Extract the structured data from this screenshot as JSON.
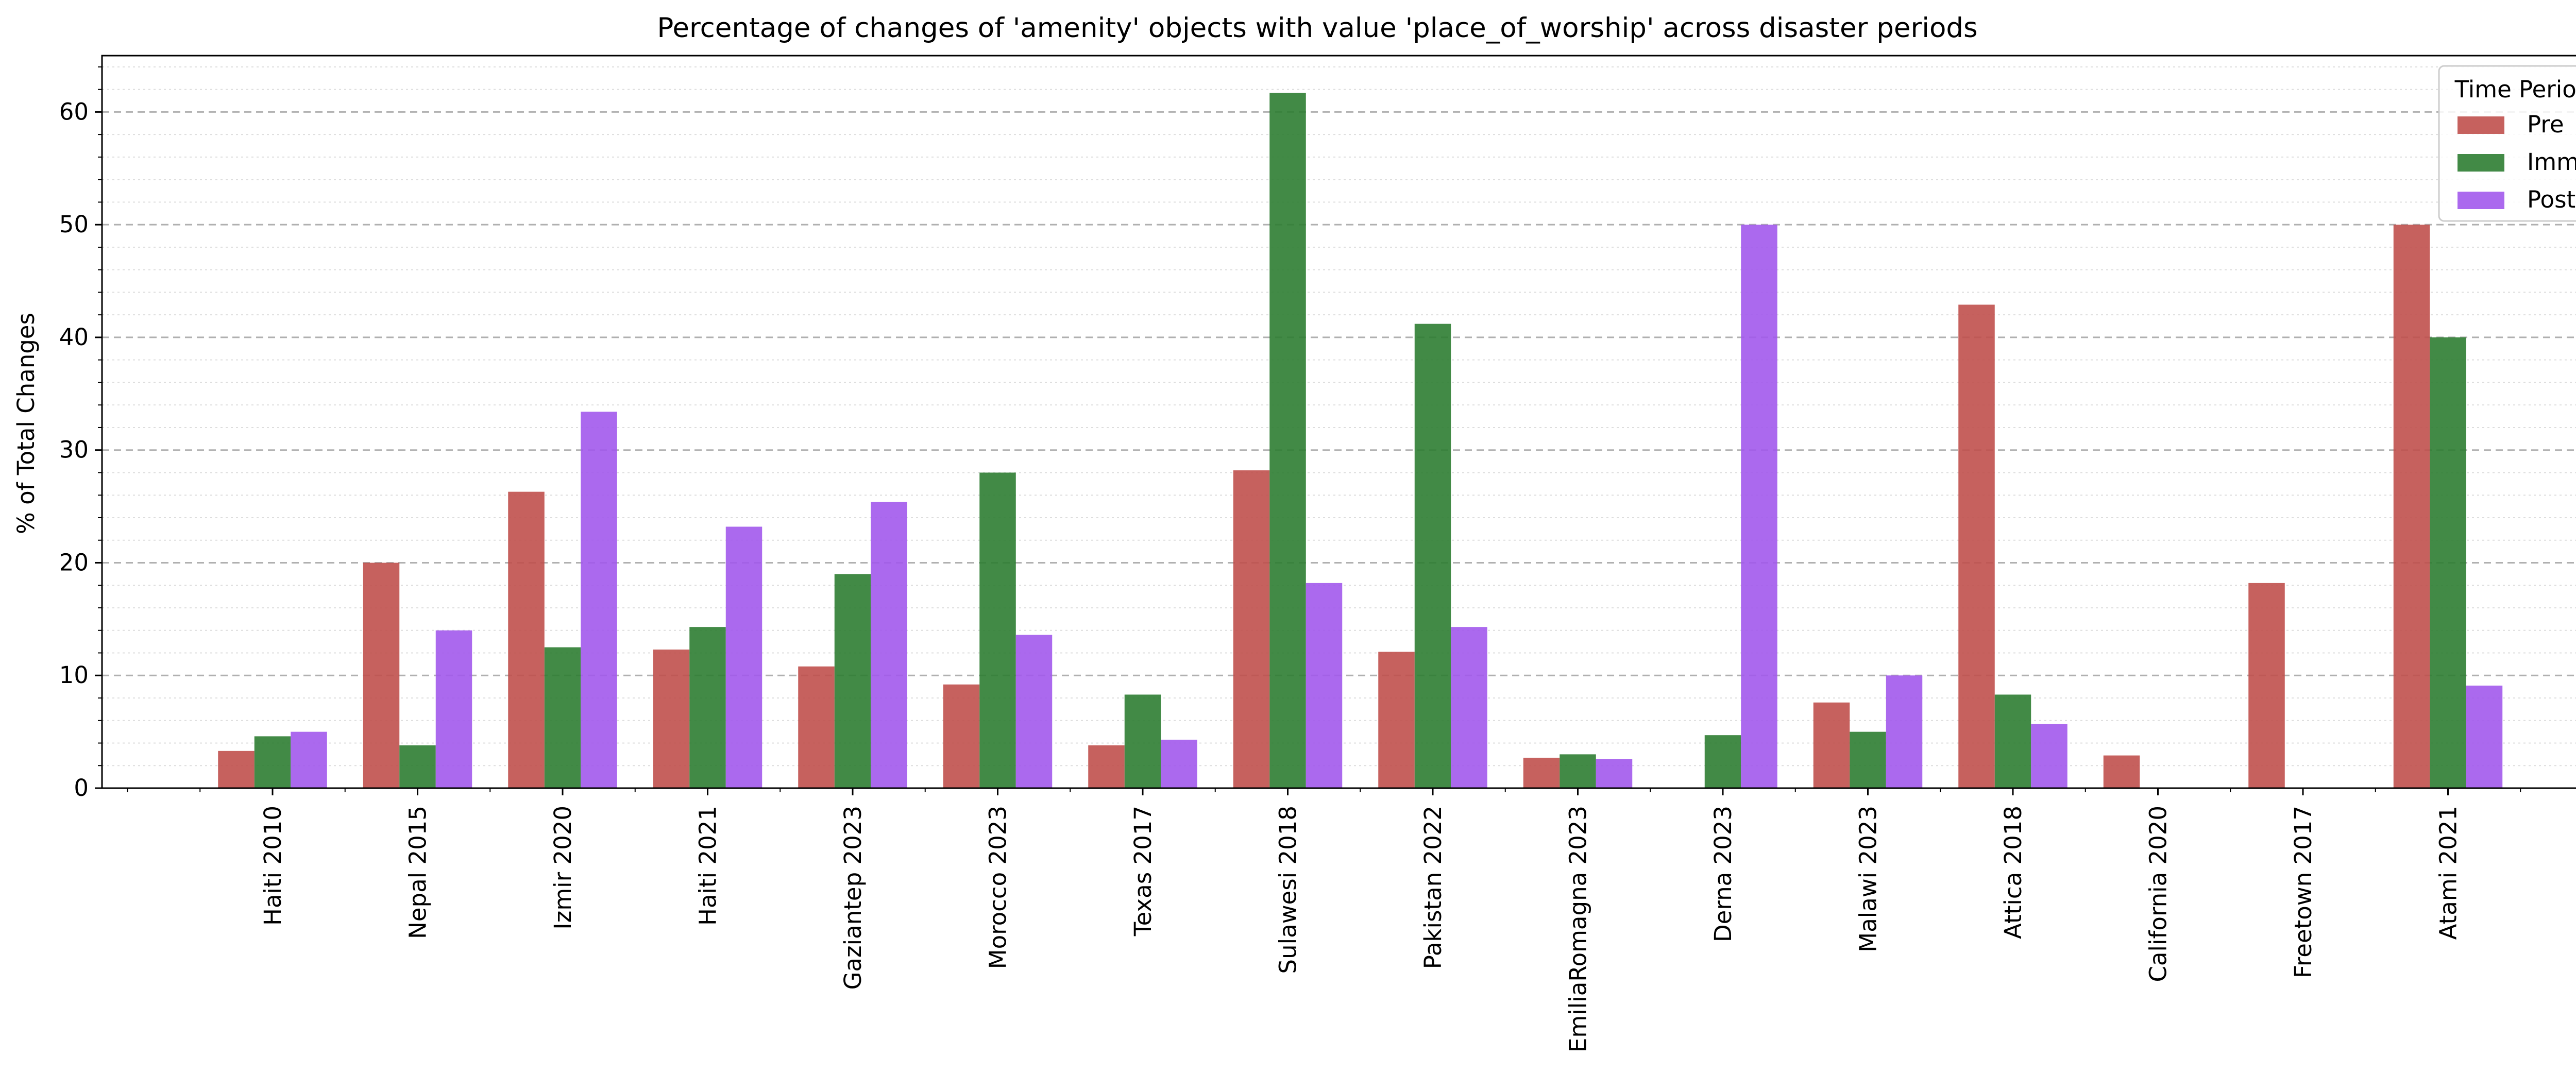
{
  "colors": {
    "pre": "#c0504d",
    "imm": "#2e7d32",
    "post": "#a259ec",
    "major_grid": "#b0b0b0",
    "minor_grid": "#dddddd",
    "axis": "#000000"
  },
  "chart_data": {
    "type": "bar",
    "title": "Percentage of changes of 'amenity' objects with value 'place_of_worship' across disaster periods",
    "xlabel": "",
    "ylabel": "% of Total Changes",
    "ylim": [
      0,
      65
    ],
    "yticks": [
      0,
      10,
      20,
      30,
      40,
      50,
      60
    ],
    "grid": true,
    "legend": {
      "title": "Time Period",
      "position": "top-right"
    },
    "categories": [
      "Haiti 2010",
      "Nepal 2015",
      "Izmir 2020",
      "Haiti 2021",
      "Gaziantep 2023",
      "Morocco 2023",
      "Texas 2017",
      "Sulawesi 2018",
      "Pakistan 2022",
      "EmiliaRomagna 2023",
      "Derna 2023",
      "Malawi 2023",
      "Attica 2018",
      "California 2020",
      "Freetown 2017",
      "Atami 2021"
    ],
    "series": [
      {
        "name": "Pre",
        "color_key": "pre",
        "values": [
          3.3,
          20.0,
          26.3,
          12.3,
          10.8,
          9.2,
          3.8,
          28.2,
          12.1,
          2.7,
          0,
          7.6,
          42.9,
          2.9,
          18.2,
          50.0
        ]
      },
      {
        "name": "Imm",
        "color_key": "imm",
        "values": [
          4.6,
          3.8,
          12.5,
          14.3,
          19.0,
          28.0,
          8.3,
          61.7,
          41.2,
          3.0,
          4.7,
          5.0,
          8.3,
          0,
          0,
          40.0
        ]
      },
      {
        "name": "Post",
        "color_key": "post",
        "values": [
          5.0,
          14.0,
          33.4,
          23.2,
          25.4,
          13.6,
          4.3,
          18.2,
          14.3,
          2.6,
          50.0,
          10.0,
          5.7,
          0,
          0,
          9.1
        ]
      }
    ]
  }
}
